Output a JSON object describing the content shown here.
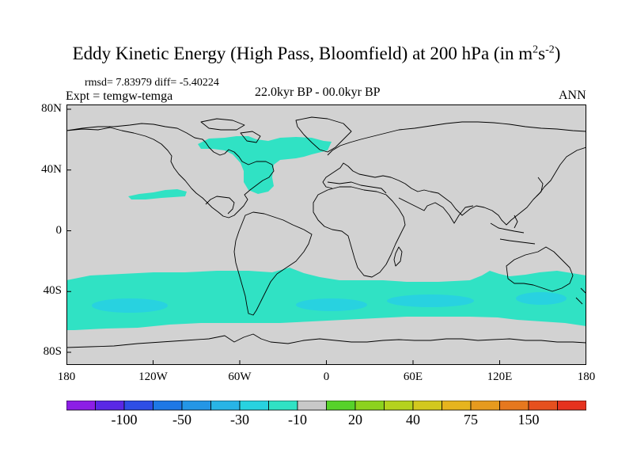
{
  "title": {
    "main": "Eddy Kinetic Energy (High Pass, Bloomfield) at 200 hPa (in m",
    "sup1": "2",
    "mid": "s",
    "sup2": "-2",
    "end": ")"
  },
  "stats": {
    "rmsd_label": "rmsd= 7.83979 diff= -5.40224"
  },
  "experiment": {
    "label": "Expt = temgw-temga"
  },
  "period": {
    "label": "22.0kyr BP - 00.0kyr BP"
  },
  "season": {
    "label": "ANN"
  },
  "axes": {
    "y_ticks": [
      {
        "label": "80N",
        "lat": 80
      },
      {
        "label": "40N",
        "lat": 40
      },
      {
        "label": "0",
        "lat": 0
      },
      {
        "label": "40S",
        "lat": -40
      },
      {
        "label": "80S",
        "lat": -80
      }
    ],
    "x_ticks": [
      {
        "label": "180",
        "lon": -180
      },
      {
        "label": "120W",
        "lon": -120
      },
      {
        "label": "60W",
        "lon": -60
      },
      {
        "label": "0",
        "lon": 0
      },
      {
        "label": "60E",
        "lon": 60
      },
      {
        "label": "120E",
        "lon": 120
      },
      {
        "label": "180",
        "lon": 180
      }
    ]
  },
  "colorbar": {
    "colors": [
      "#8c1ee6",
      "#5a28e6",
      "#2e4ee6",
      "#1e78e6",
      "#2496e6",
      "#28b4e6",
      "#28d2e0",
      "#30e2c4",
      "#c8c8c8",
      "#56d22a",
      "#8cd21e",
      "#b4d21e",
      "#d2c81e",
      "#e6b41e",
      "#e69a1e",
      "#e6781e",
      "#e6501e",
      "#e6321e"
    ],
    "labels": [
      "-100",
      "-50",
      "-30",
      "-10",
      "20",
      "40",
      "75",
      "150"
    ]
  },
  "map": {
    "background_color": "#d2d2d2",
    "anomaly_color": "#30e2c4",
    "anomaly_strong_color": "#28d2e0",
    "coast_color": "#000000"
  }
}
